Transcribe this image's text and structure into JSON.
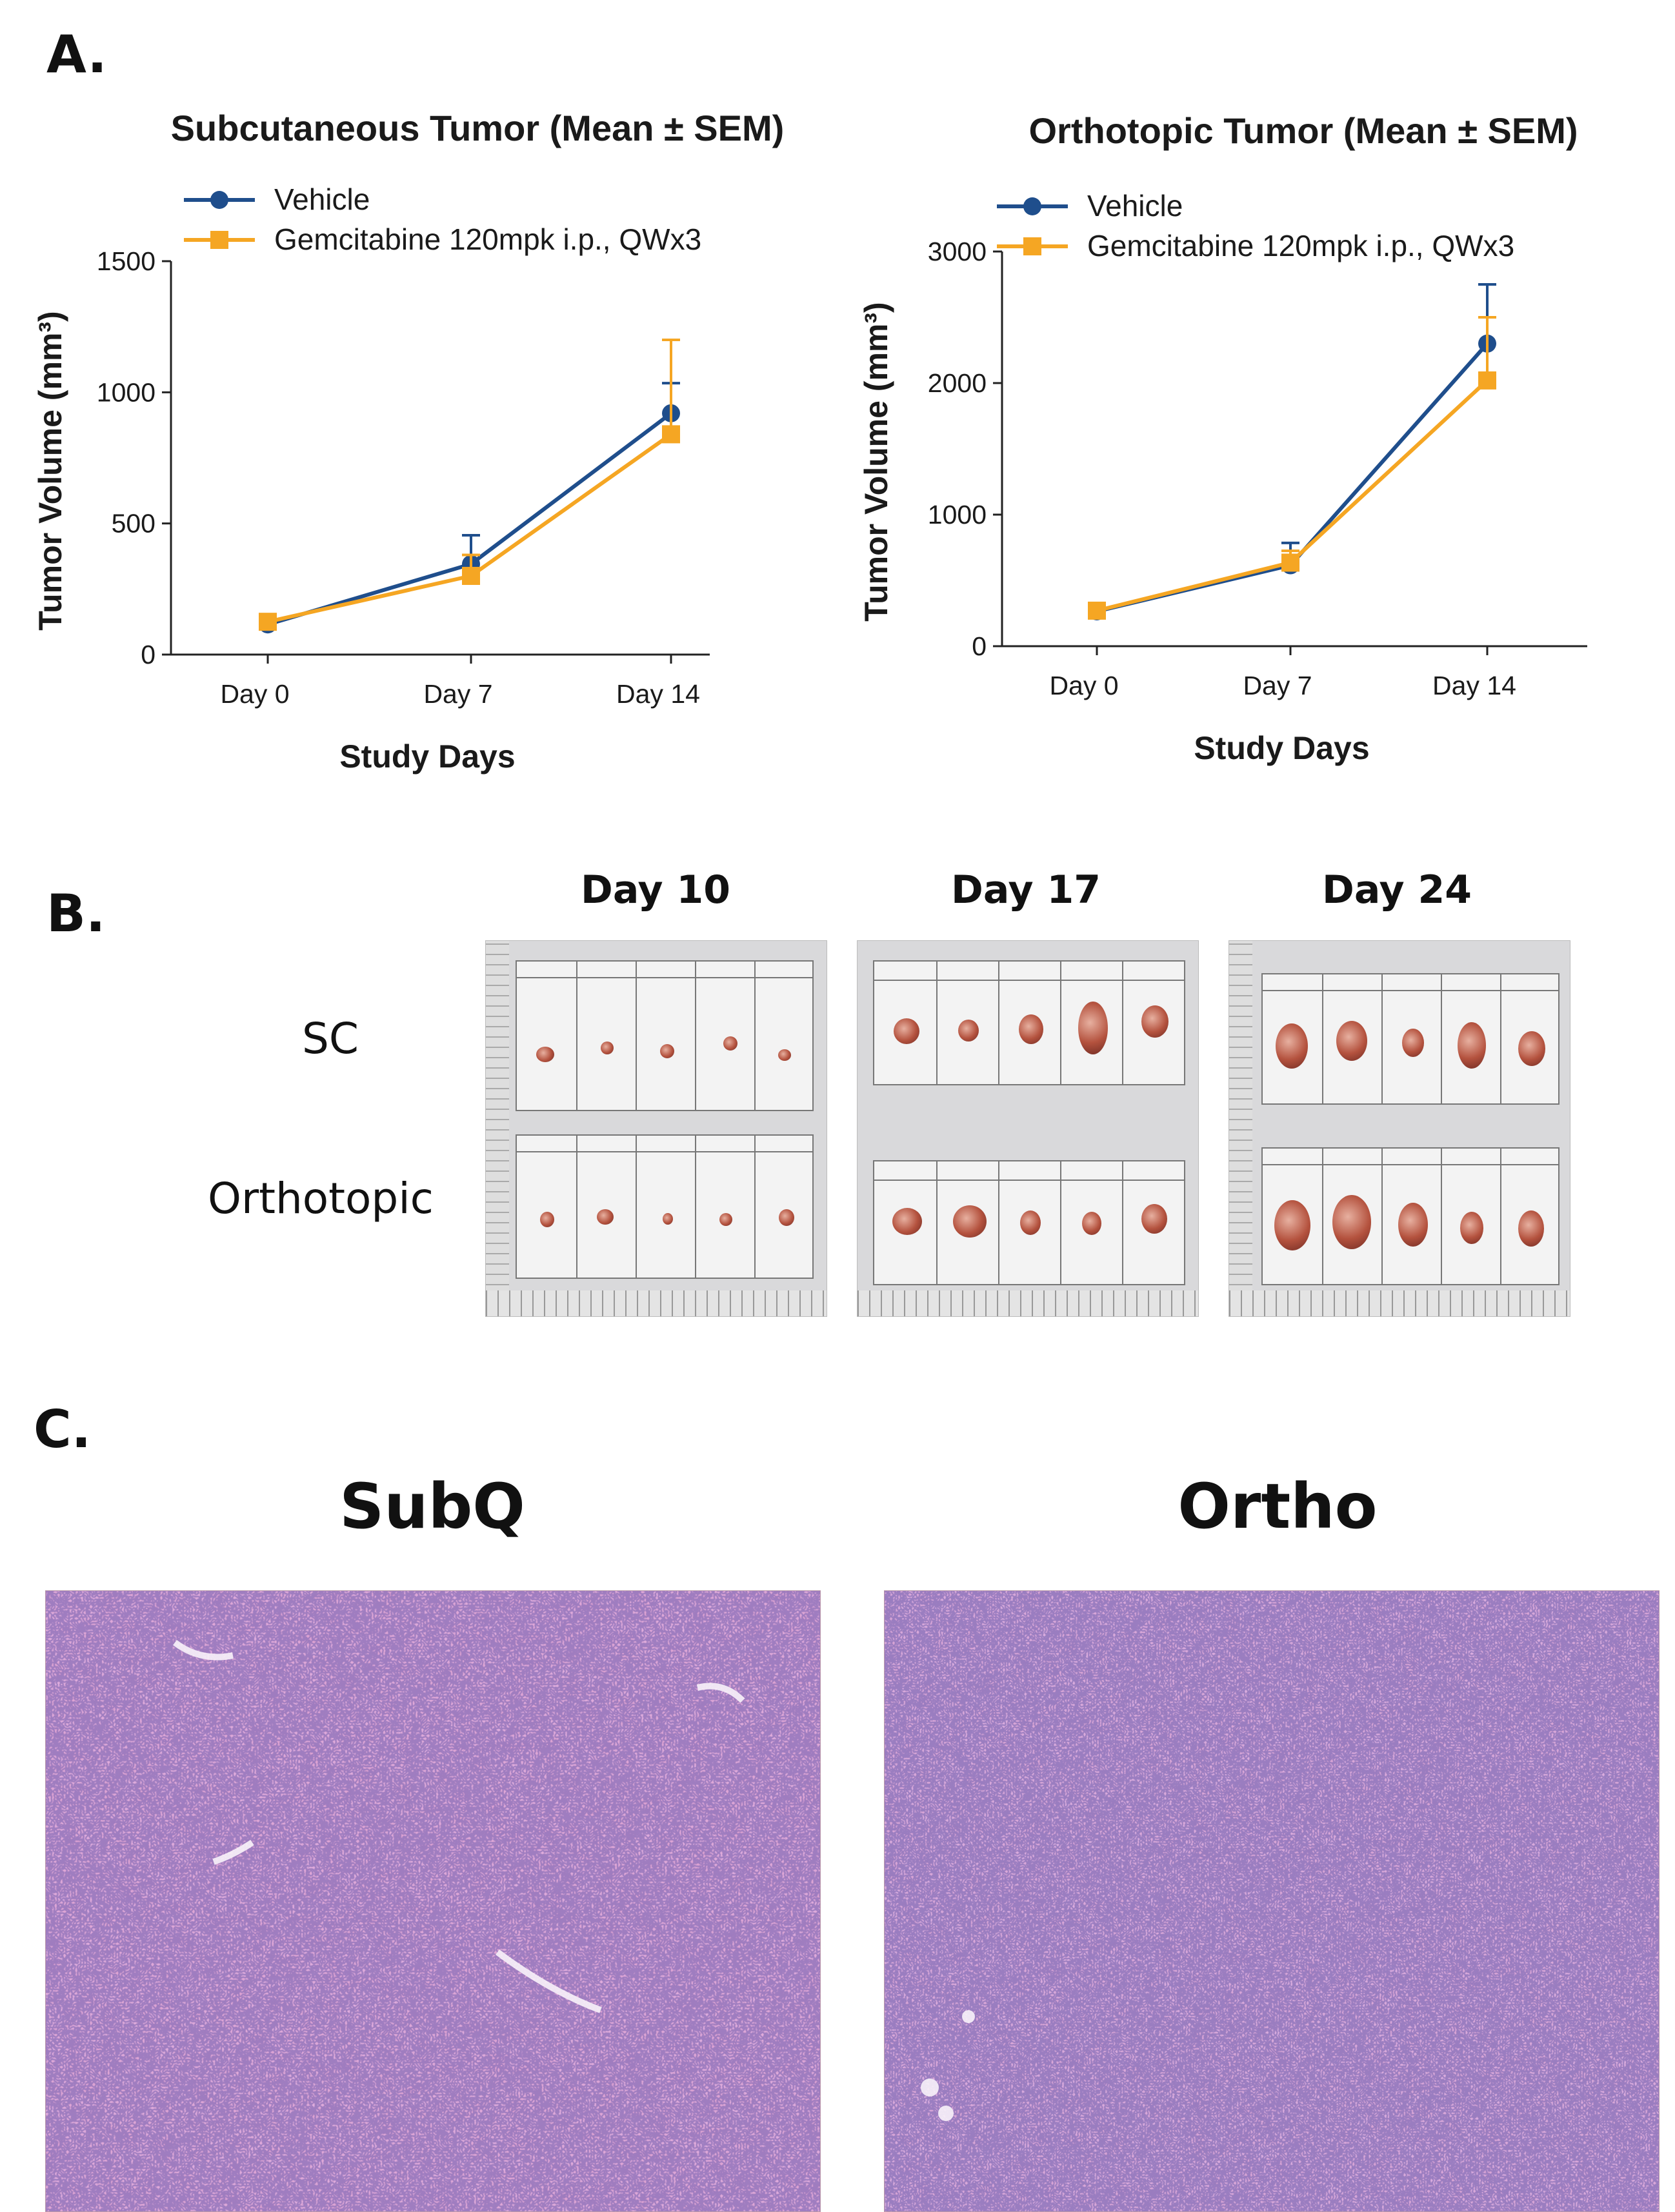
{
  "panels": {
    "a_label": "A.",
    "b_label": "B.",
    "c_label": "C."
  },
  "chart_data": [
    {
      "type": "line",
      "title": "Subcutaneous Tumor (Mean ± SEM)",
      "xlabel": "Study Days",
      "ylabel": "Tumor Volume (mm³)",
      "categories": [
        "Day 0",
        "Day 7",
        "Day 14"
      ],
      "ylim": [
        0,
        1500
      ],
      "yticks": [
        0,
        500,
        1000,
        1500
      ],
      "grid": false,
      "legend": "top-left",
      "series": [
        {
          "name": "Vehicle",
          "values": [
            115,
            345,
            920
          ],
          "errors": [
            10,
            110,
            115
          ],
          "color": "#1f4e8c",
          "marker": "circle"
        },
        {
          "name": "Gemcitabine 120mpk i.p., QWx3",
          "values": [
            125,
            300,
            840
          ],
          "errors": [
            10,
            80,
            360
          ],
          "color": "#f5a623",
          "marker": "square"
        }
      ]
    },
    {
      "type": "line",
      "title": "Orthotopic Tumor (Mean ± SEM)",
      "xlabel": "Study Days",
      "ylabel": "Tumor Volume (mm³)",
      "categories": [
        "Day 0",
        "Day 7",
        "Day 14"
      ],
      "ylim": [
        0,
        3000
      ],
      "yticks": [
        0,
        1000,
        2000,
        3000
      ],
      "grid": false,
      "legend": "top-left",
      "series": [
        {
          "name": "Vehicle",
          "values": [
            265,
            615,
            2300
          ],
          "errors": [
            15,
            170,
            450
          ],
          "color": "#1f4e8c",
          "marker": "circle"
        },
        {
          "name": "Gemcitabine 120mpk i.p., QWx3",
          "values": [
            270,
            635,
            2020
          ],
          "errors": [
            15,
            90,
            480
          ],
          "color": "#f5a623",
          "marker": "square"
        }
      ]
    }
  ],
  "panel_b": {
    "days": [
      "Day 10",
      "Day 17",
      "Day 24"
    ],
    "rows": [
      "SC",
      "Orthotopic"
    ]
  },
  "panel_c": {
    "left_title": "SubQ",
    "right_title": "Ortho"
  }
}
